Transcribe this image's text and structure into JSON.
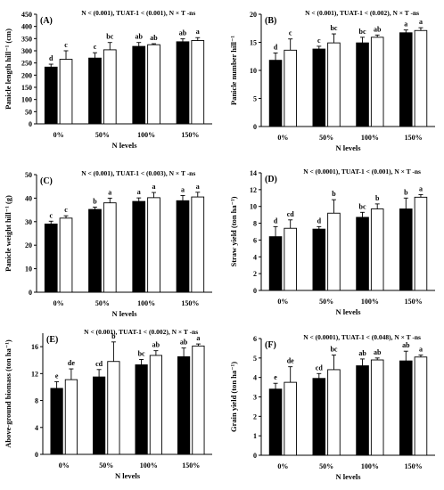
{
  "colors": {
    "treatment_a": "#000000",
    "treatment_b": "#ffffff",
    "outline": "#000000"
  },
  "chart_data": [
    {
      "type": "bar",
      "panel": "(A)",
      "annotation": "N < (0.001), TUAT-1 < (0.001), N × T -ns",
      "categories": [
        "0%",
        "50%",
        "100%",
        "150%"
      ],
      "series": [
        {
          "values": [
            233,
            270,
            318,
            337
          ],
          "errors": [
            12,
            22,
            16,
            12
          ],
          "letters": [
            "d",
            "c",
            "ab",
            "ab"
          ]
        },
        {
          "values": [
            265,
            304,
            325,
            342
          ],
          "errors": [
            35,
            30,
            4,
            12
          ],
          "letters": [
            "c",
            "bc",
            "ab",
            "a"
          ]
        }
      ],
      "xlabel": "N levels",
      "ylabel": "Panicle length hill⁻¹ (cm)",
      "ylim": [
        0,
        450
      ],
      "yticks": [
        0,
        50,
        100,
        150,
        200,
        250,
        300,
        350,
        400,
        450
      ],
      "grid": false
    },
    {
      "type": "bar",
      "panel": "(B)",
      "annotation": "N < (0.001), TUAT-1 < (0.002), N × T -ns",
      "categories": [
        "0%",
        "50%",
        "100%",
        "150%"
      ],
      "series": [
        {
          "values": [
            11.8,
            13.8,
            14.9,
            16.7
          ],
          "errors": [
            1.3,
            0.5,
            1.0,
            0.5
          ],
          "letters": [
            "d",
            "c",
            "bc",
            "a"
          ]
        },
        {
          "values": [
            13.6,
            14.9,
            15.9,
            17.1
          ],
          "errors": [
            2.0,
            1.6,
            0.4,
            0.5
          ],
          "letters": [
            "c",
            "bc",
            "ab",
            "a"
          ]
        }
      ],
      "xlabel": "N levels",
      "ylabel": "Panicle number hill⁻¹",
      "ylim": [
        0,
        20
      ],
      "yticks": [
        0,
        5,
        10,
        15,
        20
      ],
      "grid": false
    },
    {
      "type": "bar",
      "panel": "(C)",
      "annotation": "N < (0.001), TUAT-1 < (0.003), N × T -ns",
      "categories": [
        "0%",
        "50%",
        "100%",
        "150%"
      ],
      "series": [
        {
          "values": [
            29,
            35.2,
            38.6,
            38.9
          ],
          "errors": [
            1.2,
            1.0,
            1.5,
            2.2
          ],
          "letters": [
            "c",
            "b",
            "a",
            "a"
          ]
        },
        {
          "values": [
            31.5,
            38,
            40.2,
            40.5
          ],
          "errors": [
            1.0,
            2.0,
            2.2,
            2.0
          ],
          "letters": [
            "c",
            "a",
            "a",
            "a"
          ]
        }
      ],
      "xlabel": "N levels",
      "ylabel": "Panicle weight hill⁻¹ (g)",
      "ylim": [
        0,
        50
      ],
      "yticks": [
        0,
        10,
        20,
        30,
        40,
        50
      ],
      "grid": false
    },
    {
      "type": "bar",
      "panel": "(D)",
      "annotation": "N < (0.0001), TUAT-1 < (0.001), N × T -ns",
      "categories": [
        "0%",
        "50%",
        "100%",
        "150%"
      ],
      "series": [
        {
          "values": [
            6.4,
            7.3,
            8.7,
            9.7
          ],
          "errors": [
            1.2,
            0.3,
            0.6,
            1.3
          ],
          "letters": [
            "d",
            "d",
            "bc",
            "b"
          ]
        },
        {
          "values": [
            7.4,
            9.2,
            9.7,
            11.1
          ],
          "errors": [
            1.0,
            1.6,
            0.6,
            0.3
          ],
          "letters": [
            "cd",
            "b",
            "b",
            "a"
          ]
        }
      ],
      "xlabel": "N levels",
      "ylabel": "Straw yield (ton ha⁻¹)",
      "ylim": [
        0,
        14
      ],
      "yticks": [
        0,
        2,
        4,
        6,
        8,
        10,
        12,
        14
      ],
      "grid": false
    },
    {
      "type": "bar",
      "panel": "(E)",
      "annotation": "N < (0.001), TUAT-1 < (0.002), N × T -ns",
      "categories": [
        "0%",
        "50%",
        "100%",
        "150%"
      ],
      "series": [
        {
          "values": [
            9.8,
            11.5,
            13.3,
            14.5
          ],
          "errors": [
            1.0,
            1.1,
            0.8,
            1.3
          ],
          "letters": [
            "e",
            "cd",
            "bc",
            "ab"
          ]
        },
        {
          "values": [
            11.1,
            13.8,
            14.7,
            16.1
          ],
          "errors": [
            1.6,
            2.9,
            0.7,
            0.3
          ],
          "letters": [
            "de",
            "b",
            "ab",
            "a"
          ]
        }
      ],
      "xlabel": "N levels",
      "ylabel": "Above-ground biomass (ton ha⁻¹)",
      "ylim": [
        0,
        18
      ],
      "yticks": [
        0,
        4,
        8,
        12,
        16
      ],
      "grid": false
    },
    {
      "type": "bar",
      "panel": "(F)",
      "annotation": "N < (0.0001), TUAT-1 < (0.048), N × T -ns",
      "categories": [
        "0%",
        "50%",
        "100%",
        "150%"
      ],
      "series": [
        {
          "values": [
            3.4,
            3.95,
            4.6,
            4.85
          ],
          "errors": [
            0.3,
            0.25,
            0.35,
            0.5
          ],
          "letters": [
            "e",
            "cd",
            "ab",
            "ab"
          ]
        },
        {
          "values": [
            3.75,
            4.4,
            4.9,
            5.05
          ],
          "errors": [
            0.8,
            0.75,
            0.1,
            0.1
          ],
          "letters": [
            "de",
            "bc",
            "ab",
            "a"
          ]
        }
      ],
      "xlabel": "N levels",
      "ylabel": "Grain yield (ton ha⁻¹)",
      "ylim": [
        0,
        6
      ],
      "yticks": [
        0,
        1,
        2,
        3,
        4,
        5,
        6
      ],
      "grid": false
    }
  ]
}
